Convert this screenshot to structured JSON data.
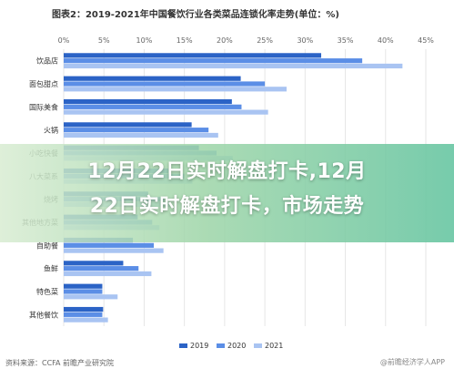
{
  "title": "图表2：2019-2021年中国餐饮行业各类菜品连锁化率走势(单位：%)",
  "overlay": {
    "line1": "12月22日实时解盘打卡,12月",
    "line2": "22日实时解盘打卡，市场走势"
  },
  "source": "资料来源：CCFA 前瞻产业研究院",
  "watermark": "@前瞻经济学人APP",
  "colors": {
    "2019": "#2b63c6",
    "2020": "#5b8ee6",
    "2021": "#a9c4f2",
    "grid": "#e6e6e6",
    "axis_text": "#666666"
  },
  "chart_data": {
    "type": "bar",
    "orientation": "horizontal",
    "title": "图表2：2019-2021年中国餐饮行业各类菜品连锁化率走势(单位：%)",
    "xlim": [
      0,
      45
    ],
    "x_ticks": [
      "0%",
      "5%",
      "10%",
      "15%",
      "20%",
      "25%",
      "30%",
      "35%",
      "40%",
      "45%"
    ],
    "grid": "vertical",
    "legend_position": "bottom-center",
    "categories": [
      "饮品店",
      "面包甜点",
      "国际美食",
      "火锅",
      "小吃快餐",
      "八大菜系",
      "烧烤",
      "其他地方菜",
      "自助餐",
      "鱼鲜",
      "特色菜",
      "其他餐饮"
    ],
    "series": [
      {
        "name": "2019",
        "values": [
          32.0,
          22.0,
          20.9,
          15.9,
          16.8,
          13.0,
          10.5,
          9.2,
          8.6,
          7.4,
          4.8,
          4.9
        ]
      },
      {
        "name": "2020",
        "values": [
          37.1,
          25.0,
          22.1,
          18.0,
          19.0,
          15.0,
          12.5,
          11.0,
          11.2,
          9.3,
          4.8,
          4.8
        ]
      },
      {
        "name": "2021",
        "values": [
          42.1,
          27.7,
          25.4,
          19.2,
          21.0,
          16.0,
          13.2,
          11.9,
          12.4,
          10.9,
          6.7,
          5.5
        ]
      }
    ]
  }
}
